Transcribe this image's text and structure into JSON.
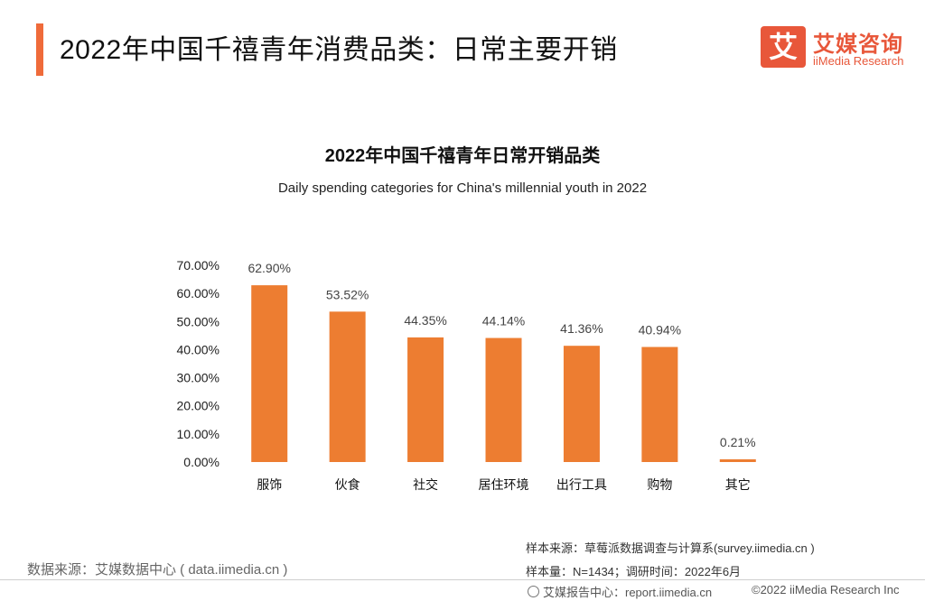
{
  "header": {
    "title": "2022年中国千禧青年消费品类：日常主要开销"
  },
  "logo": {
    "mark": "艾",
    "name_cn": "艾媒咨询",
    "name_en": "iiMedia Research"
  },
  "chart_data": {
    "type": "bar",
    "title": "2022年中国千禧青年日常开销品类",
    "subtitle": "Daily spending categories for China's millennial youth in 2022",
    "categories": [
      "服饰",
      "伙食",
      "社交",
      "居住环境",
      "出行工具",
      "购物",
      "其它"
    ],
    "values": [
      62.9,
      53.52,
      44.35,
      44.14,
      41.36,
      40.94,
      0.21
    ],
    "value_labels": [
      "62.90%",
      "53.52%",
      "44.35%",
      "44.14%",
      "41.36%",
      "40.94%",
      "0.21%"
    ],
    "y_ticks": [
      "0.00%",
      "10.00%",
      "20.00%",
      "30.00%",
      "40.00%",
      "50.00%",
      "60.00%",
      "70.00%"
    ],
    "ylim": [
      0,
      70
    ],
    "xlabel": "",
    "ylabel": "",
    "bar_color": "#ed7d31"
  },
  "sources": {
    "data_source": "数据来源：艾媒数据中心 ( data.iimedia.cn )",
    "sample_source": "样本来源：草莓派数据调查与计算系(survey.iimedia.cn )",
    "sample_info": "样本量：N=1434；调研时间：2022年6月"
  },
  "footer": {
    "report_link": "艾媒报告中心：report.iimedia.cn",
    "copyright": "©2022  iiMedia Research Inc"
  },
  "colors": {
    "accent": "#ef6b3a",
    "logo": "#e8573a"
  }
}
